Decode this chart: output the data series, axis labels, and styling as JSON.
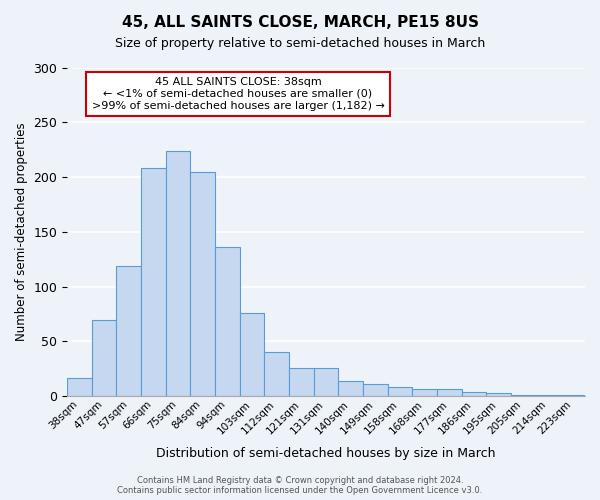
{
  "title": "45, ALL SAINTS CLOSE, MARCH, PE15 8US",
  "subtitle": "Size of property relative to semi-detached houses in March",
  "xlabel": "Distribution of semi-detached houses by size in March",
  "ylabel": "Number of semi-detached properties",
  "bin_labels": [
    "38sqm",
    "47sqm",
    "57sqm",
    "66sqm",
    "75sqm",
    "84sqm",
    "94sqm",
    "103sqm",
    "112sqm",
    "121sqm",
    "131sqm",
    "140sqm",
    "149sqm",
    "158sqm",
    "168sqm",
    "177sqm",
    "186sqm",
    "195sqm",
    "205sqm",
    "214sqm",
    "223sqm"
  ],
  "bar_heights": [
    17,
    70,
    119,
    208,
    224,
    205,
    136,
    76,
    40,
    26,
    26,
    14,
    11,
    8,
    7,
    7,
    4,
    3,
    1,
    1,
    1
  ],
  "bar_color": "#c5d8f0",
  "bar_edge_color": "#5b9bd5",
  "annotation_title": "45 ALL SAINTS CLOSE: 38sqm",
  "annotation_line1": "← <1% of semi-detached houses are smaller (0)",
  "annotation_line2": ">99% of semi-detached houses are larger (1,182) →",
  "annotation_box_color": "#ffffff",
  "annotation_box_edge_color": "#cc0000",
  "ylim": [
    0,
    300
  ],
  "yticks": [
    0,
    50,
    100,
    150,
    200,
    250,
    300
  ],
  "footer_line1": "Contains HM Land Registry data © Crown copyright and database right 2024.",
  "footer_line2": "Contains public sector information licensed under the Open Government Licence v3.0.",
  "background_color": "#eef2f9",
  "plot_background_color": "#eef2f9"
}
